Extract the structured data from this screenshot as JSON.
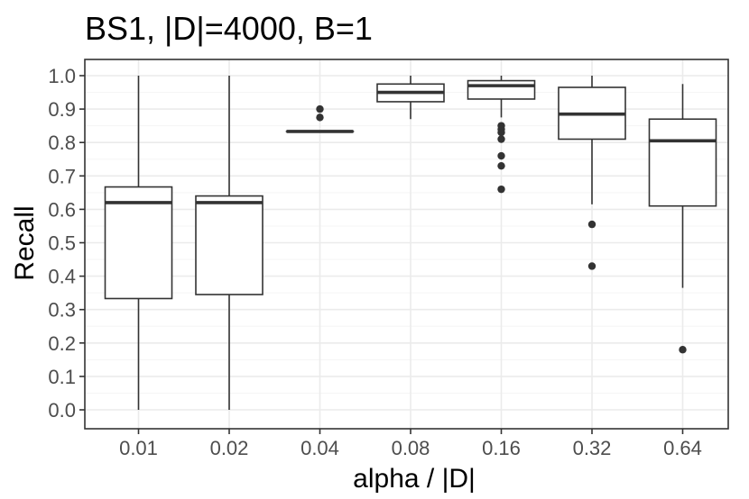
{
  "chart_data": {
    "type": "box",
    "title": "BS1, |D|=4000, B=1",
    "xlabel": "alpha / |D|",
    "ylabel": "Recall",
    "ylim": [
      -0.05,
      1.05
    ],
    "yticks": [
      "0.0",
      "0.1",
      "0.2",
      "0.3",
      "0.4",
      "0.5",
      "0.6",
      "0.7",
      "0.8",
      "0.9",
      "1.0"
    ],
    "categories": [
      "0.01",
      "0.02",
      "0.04",
      "0.08",
      "0.16",
      "0.32",
      "0.64"
    ],
    "grid": true,
    "legend": "none",
    "boxes": [
      {
        "category": "0.01",
        "whisker_low": 0.0,
        "q1": 0.333,
        "median": 0.62,
        "q3": 0.667,
        "whisker_high": 1.0,
        "outliers": []
      },
      {
        "category": "0.02",
        "whisker_low": 0.0,
        "q1": 0.345,
        "median": 0.62,
        "q3": 0.64,
        "whisker_high": 1.0,
        "outliers": []
      },
      {
        "category": "0.04",
        "whisker_low": 0.833,
        "q1": 0.833,
        "median": 0.833,
        "q3": 0.833,
        "whisker_high": 0.833,
        "outliers": [
          0.875,
          0.9
        ]
      },
      {
        "category": "0.08",
        "whisker_low": 0.87,
        "q1": 0.922,
        "median": 0.95,
        "q3": 0.975,
        "whisker_high": 1.0,
        "outliers": []
      },
      {
        "category": "0.16",
        "whisker_low": 0.875,
        "q1": 0.93,
        "median": 0.97,
        "q3": 0.985,
        "whisker_high": 1.0,
        "outliers": [
          0.85,
          0.84,
          0.83,
          0.81,
          0.76,
          0.73,
          0.66
        ]
      },
      {
        "category": "0.32",
        "whisker_low": 0.615,
        "q1": 0.81,
        "median": 0.885,
        "q3": 0.965,
        "whisker_high": 1.0,
        "outliers": [
          0.555,
          0.43
        ]
      },
      {
        "category": "0.64",
        "whisker_low": 0.365,
        "q1": 0.61,
        "median": 0.805,
        "q3": 0.87,
        "whisker_high": 0.975,
        "outliers": [
          0.18
        ]
      }
    ],
    "colors": {
      "panel_border": "#333333",
      "grid_major": "#ebebeb",
      "grid_minor": "#f5f5f5",
      "box_line": "#333333",
      "outlier": "#333333",
      "tick_text": "#4d4d4d",
      "title_text": "#000000"
    }
  }
}
